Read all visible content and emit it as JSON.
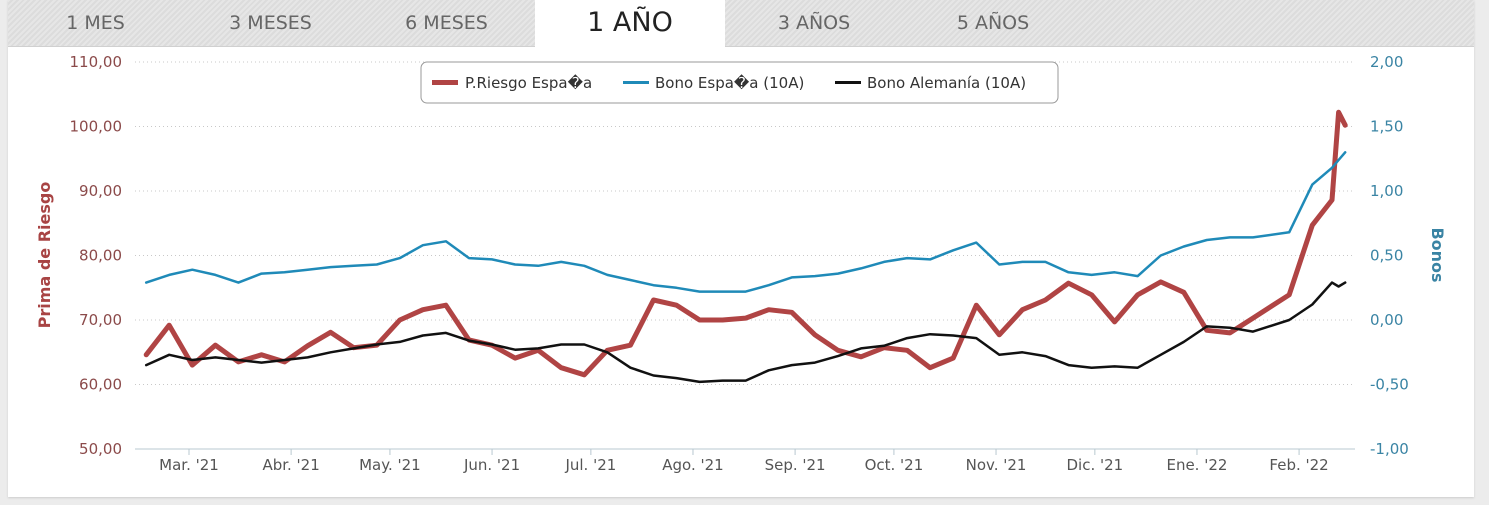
{
  "tabs": [
    {
      "label": "1 MES",
      "active": false
    },
    {
      "label": "3 MESES",
      "active": false
    },
    {
      "label": "6 MESES",
      "active": false
    },
    {
      "label": "1 AÑO",
      "active": true
    },
    {
      "label": "3 AÑOS",
      "active": false
    },
    {
      "label": "5 AÑOS",
      "active": false
    }
  ],
  "chart_data": {
    "type": "line",
    "title": "",
    "ylabel_left": "Prima de Riesgo",
    "ylabel_right": "Bonos",
    "ylim_left": [
      50,
      110
    ],
    "ylim_right": [
      -1,
      2
    ],
    "yticks_left": [
      "50,00",
      "60,00",
      "70,00",
      "80,00",
      "90,00",
      "100,00",
      "110,00"
    ],
    "yticks_right": [
      "-1,00",
      "-0,50",
      "0,00",
      "0,50",
      "1,00",
      "1,50",
      "2,00"
    ],
    "xticks": [
      {
        "date": "2021-03-01",
        "label": "Mar. '21"
      },
      {
        "date": "2021-04-01",
        "label": "Abr. '21"
      },
      {
        "date": "2021-05-01",
        "label": "May. '21"
      },
      {
        "date": "2021-06-01",
        "label": "Jun. '21"
      },
      {
        "date": "2021-07-01",
        "label": "Jul. '21"
      },
      {
        "date": "2021-08-01",
        "label": "Ago. '21"
      },
      {
        "date": "2021-09-01",
        "label": "Sep. '21"
      },
      {
        "date": "2021-10-01",
        "label": "Oct. '21"
      },
      {
        "date": "2021-11-01",
        "label": "Nov. '21"
      },
      {
        "date": "2021-12-01",
        "label": "Dic. '21"
      },
      {
        "date": "2022-01-01",
        "label": "Ene. '22"
      },
      {
        "date": "2022-02-01",
        "label": "Feb. '22"
      }
    ],
    "grid": true,
    "legend_placement": "top-center",
    "x": [
      "2021-02-16",
      "2021-02-23",
      "2021-03-02",
      "2021-03-09",
      "2021-03-16",
      "2021-03-23",
      "2021-03-30",
      "2021-04-06",
      "2021-04-13",
      "2021-04-20",
      "2021-04-27",
      "2021-05-04",
      "2021-05-11",
      "2021-05-18",
      "2021-05-25",
      "2021-06-01",
      "2021-06-08",
      "2021-06-15",
      "2021-06-22",
      "2021-06-29",
      "2021-07-06",
      "2021-07-13",
      "2021-07-20",
      "2021-07-27",
      "2021-08-03",
      "2021-08-10",
      "2021-08-17",
      "2021-08-24",
      "2021-08-31",
      "2021-09-07",
      "2021-09-14",
      "2021-09-21",
      "2021-09-28",
      "2021-10-05",
      "2021-10-12",
      "2021-10-19",
      "2021-10-26",
      "2021-11-02",
      "2021-11-09",
      "2021-11-16",
      "2021-11-23",
      "2021-11-30",
      "2021-12-07",
      "2021-12-14",
      "2021-12-21",
      "2021-12-28",
      "2022-01-04",
      "2022-01-11",
      "2022-01-18",
      "2022-01-29",
      "2022-02-05",
      "2022-02-11",
      "2022-02-13",
      "2022-02-15"
    ],
    "series": [
      {
        "name": "P.Riesgo Espa�a",
        "axis": "left",
        "color": "#b04444",
        "values": [
          64.6,
          69.2,
          63.0,
          66.1,
          63.5,
          64.6,
          63.5,
          66.0,
          68.1,
          65.7,
          66.1,
          70.0,
          71.6,
          72.3,
          66.9,
          66.1,
          64.1,
          65.3,
          62.6,
          61.5,
          65.3,
          66.1,
          73.1,
          72.3,
          70.0,
          70.0,
          70.3,
          71.6,
          71.2,
          67.7,
          65.3,
          64.3,
          65.7,
          65.3,
          62.6,
          64.1,
          72.3,
          67.7,
          71.6,
          73.1,
          75.7,
          73.9,
          69.7,
          73.9,
          75.9,
          74.3,
          68.4,
          68.0,
          70.3,
          73.9,
          84.7,
          88.6,
          102.2,
          100.2
        ]
      },
      {
        "name": "Bono Espa�a (10A)",
        "axis": "right",
        "color": "#1f8ab8",
        "values": [
          0.29,
          0.35,
          0.39,
          0.35,
          0.29,
          0.36,
          0.37,
          0.39,
          0.41,
          0.42,
          0.43,
          0.48,
          0.58,
          0.61,
          0.48,
          0.47,
          0.43,
          0.42,
          0.45,
          0.42,
          0.35,
          0.31,
          0.27,
          0.25,
          0.22,
          0.22,
          0.22,
          0.27,
          0.33,
          0.34,
          0.36,
          0.4,
          0.45,
          0.48,
          0.47,
          0.54,
          0.6,
          0.43,
          0.45,
          0.45,
          0.37,
          0.35,
          0.37,
          0.34,
          0.5,
          0.57,
          0.62,
          0.64,
          0.64,
          0.68,
          1.05,
          1.18,
          1.24,
          1.3
        ]
      },
      {
        "name": "Bono Alemanía (10A)",
        "axis": "right",
        "color": "#111111",
        "values": [
          -0.35,
          -0.27,
          -0.31,
          -0.29,
          -0.31,
          -0.33,
          -0.31,
          -0.29,
          -0.25,
          -0.22,
          -0.19,
          -0.17,
          -0.12,
          -0.1,
          -0.16,
          -0.19,
          -0.23,
          -0.22,
          -0.19,
          -0.19,
          -0.25,
          -0.37,
          -0.43,
          -0.45,
          -0.48,
          -0.47,
          -0.47,
          -0.39,
          -0.35,
          -0.33,
          -0.28,
          -0.22,
          -0.2,
          -0.14,
          -0.11,
          -0.12,
          -0.14,
          -0.27,
          -0.25,
          -0.28,
          -0.35,
          -0.37,
          -0.36,
          -0.37,
          -0.27,
          -0.17,
          -0.05,
          -0.06,
          -0.09,
          0.0,
          0.12,
          0.29,
          0.26,
          0.29
        ]
      }
    ]
  }
}
